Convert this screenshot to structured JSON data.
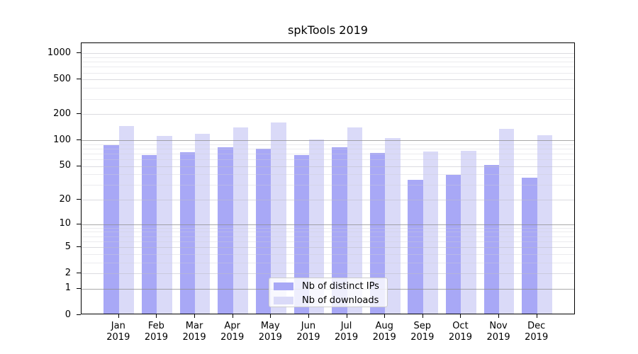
{
  "chart_data": {
    "type": "bar",
    "title": "spkTools 2019",
    "categories": [
      "Jan",
      "Feb",
      "Mar",
      "Apr",
      "May",
      "Jun",
      "Jul",
      "Aug",
      "Sep",
      "Oct",
      "Nov",
      "Dec"
    ],
    "category_year": "2019",
    "series": [
      {
        "name": "Nb of distinct IPs",
        "color": "#a8a8f6",
        "values": [
          85,
          65,
          70,
          80,
          77,
          65,
          80,
          68,
          33,
          38,
          50,
          35
        ]
      },
      {
        "name": "Nb of downloads",
        "color": "#dadaf8",
        "values": [
          140,
          108,
          115,
          135,
          155,
          98,
          135,
          102,
          71,
          72,
          130,
          110
        ]
      }
    ],
    "xlabel": "",
    "ylabel": "",
    "yscale": "log1p",
    "yticks": [
      0,
      1,
      2,
      5,
      10,
      20,
      50,
      100,
      200,
      500,
      1000
    ],
    "ylim": [
      0,
      1300
    ],
    "grid": true,
    "legend_position": "lower-center"
  }
}
